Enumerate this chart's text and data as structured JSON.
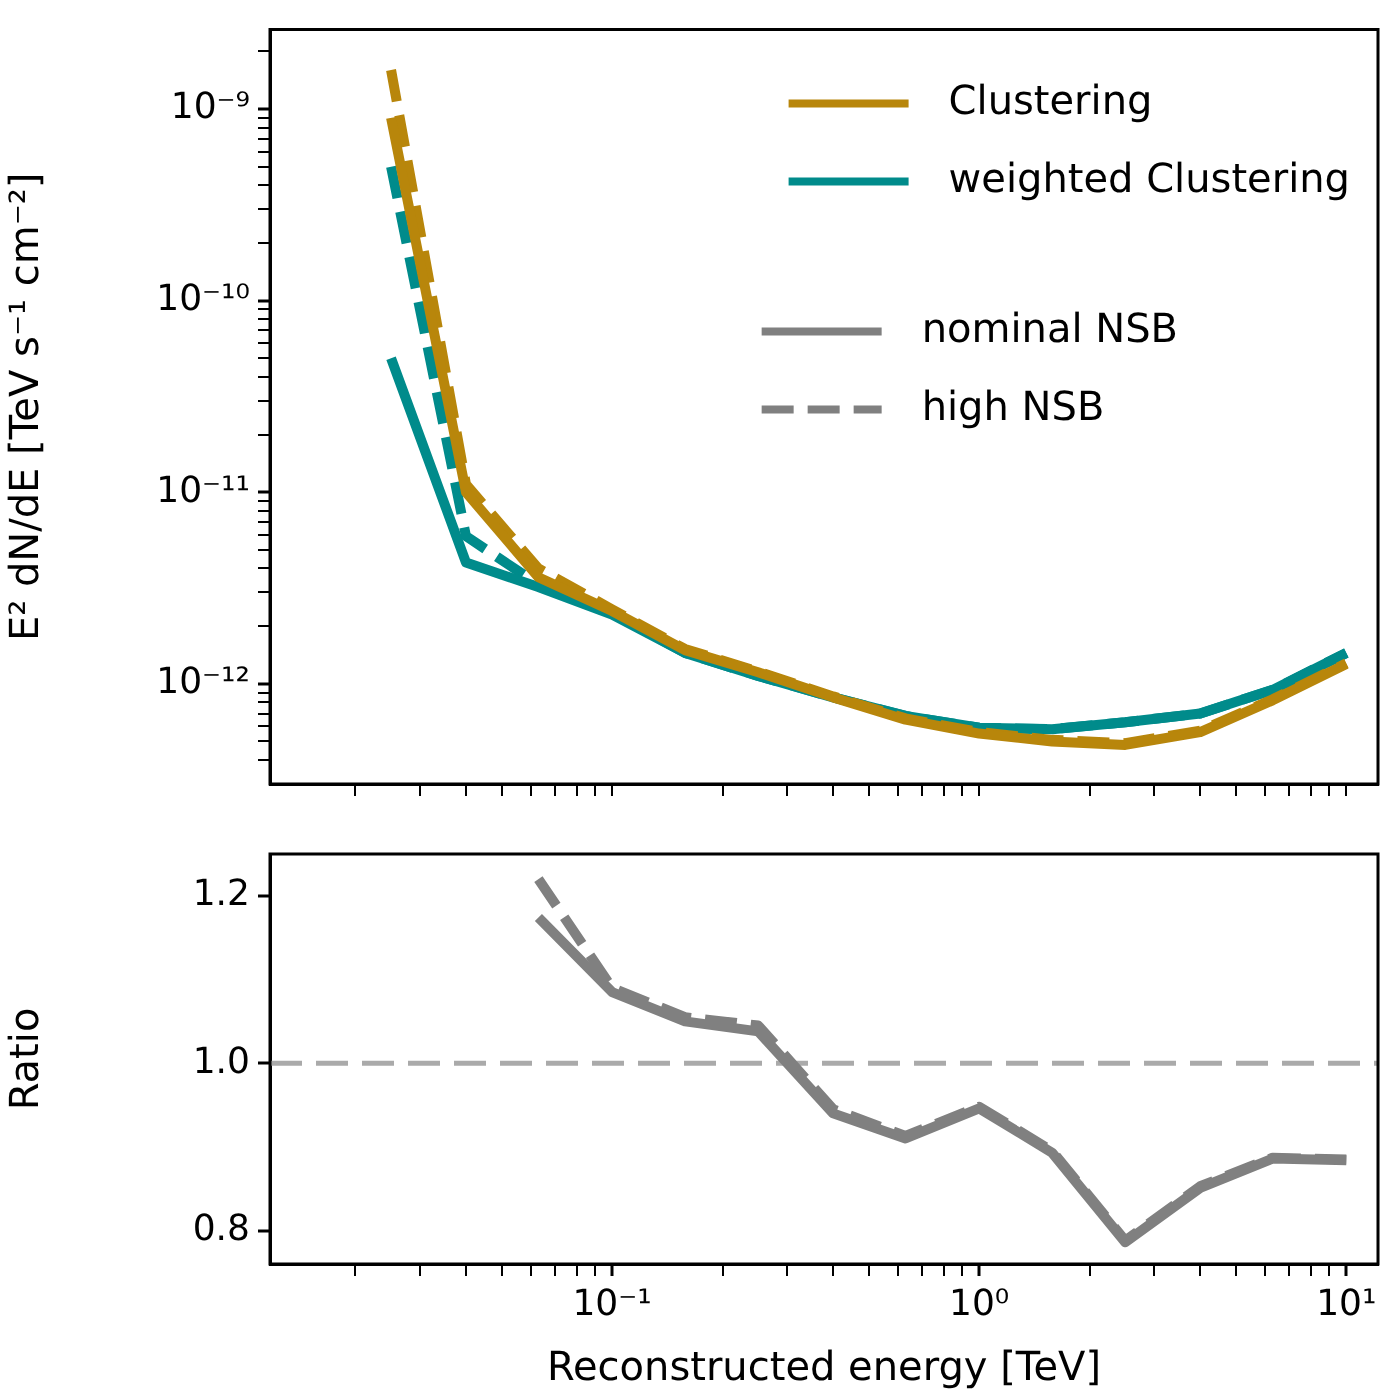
{
  "chart_data": [
    {
      "type": "line",
      "ylabel": "E² dN/dE [TeV s⁻¹ cm⁻²]",
      "log": "xy",
      "legend": "top right",
      "tick_labels": "y",
      "grid": false,
      "x": [
        0.025,
        0.04,
        0.063,
        0.1,
        0.158,
        0.25,
        0.4,
        0.63,
        1.0,
        1.58,
        2.5,
        4.0,
        6.3,
        10
      ],
      "xlim": [
        0.0117,
        12.2
      ],
      "ylim": [
        3.2e-13,
        2.6e-09
      ],
      "xticks": [
        {
          "value": 0.02,
          "label": null
        },
        {
          "value": 0.03,
          "label": null
        },
        {
          "value": 0.04,
          "label": null
        },
        {
          "value": 0.05,
          "label": null
        },
        {
          "value": 0.06,
          "label": null
        },
        {
          "value": 0.07,
          "label": null
        },
        {
          "value": 0.08,
          "label": null
        },
        {
          "value": 0.09,
          "label": null
        },
        {
          "value": 0.1,
          "label": null
        },
        {
          "value": 0.2,
          "label": null
        },
        {
          "value": 0.3,
          "label": null
        },
        {
          "value": 0.4,
          "label": null
        },
        {
          "value": 0.5,
          "label": null
        },
        {
          "value": 0.6,
          "label": null
        },
        {
          "value": 0.7,
          "label": null
        },
        {
          "value": 0.8,
          "label": null
        },
        {
          "value": 0.9,
          "label": null
        },
        {
          "value": 1,
          "label": null
        },
        {
          "value": 2,
          "label": null
        },
        {
          "value": 3,
          "label": null
        },
        {
          "value": 4,
          "label": null
        },
        {
          "value": 5,
          "label": null
        },
        {
          "value": 6,
          "label": null
        },
        {
          "value": 7,
          "label": null
        },
        {
          "value": 8,
          "label": null
        },
        {
          "value": 9,
          "label": null
        },
        {
          "value": 10,
          "label": null
        }
      ],
      "yticks": [
        {
          "value": 4e-13,
          "label": null
        },
        {
          "value": 5e-13,
          "label": null
        },
        {
          "value": 6e-13,
          "label": null
        },
        {
          "value": 7e-13,
          "label": null
        },
        {
          "value": 8e-13,
          "label": null
        },
        {
          "value": 9e-13,
          "label": null
        },
        {
          "value": 1e-12,
          "label": "10⁻¹²"
        },
        {
          "value": 2e-12,
          "label": null
        },
        {
          "value": 3e-12,
          "label": null
        },
        {
          "value": 4e-12,
          "label": null
        },
        {
          "value": 5e-12,
          "label": null
        },
        {
          "value": 6e-12,
          "label": null
        },
        {
          "value": 7e-12,
          "label": null
        },
        {
          "value": 8e-12,
          "label": null
        },
        {
          "value": 9e-12,
          "label": null
        },
        {
          "value": 1e-11,
          "label": "10⁻¹¹"
        },
        {
          "value": 2e-11,
          "label": null
        },
        {
          "value": 3e-11,
          "label": null
        },
        {
          "value": 4e-11,
          "label": null
        },
        {
          "value": 5e-11,
          "label": null
        },
        {
          "value": 6e-11,
          "label": null
        },
        {
          "value": 7e-11,
          "label": null
        },
        {
          "value": 8e-11,
          "label": null
        },
        {
          "value": 9e-11,
          "label": null
        },
        {
          "value": 1e-10,
          "label": "10⁻¹⁰"
        },
        {
          "value": 2e-10,
          "label": null
        },
        {
          "value": 3e-10,
          "label": null
        },
        {
          "value": 4e-10,
          "label": null
        },
        {
          "value": 5e-10,
          "label": null
        },
        {
          "value": 6e-10,
          "label": null
        },
        {
          "value": 7e-10,
          "label": null
        },
        {
          "value": 8e-10,
          "label": null
        },
        {
          "value": 9e-10,
          "label": null
        },
        {
          "value": 1e-09,
          "label": "10⁻⁹"
        },
        {
          "value": 2e-09,
          "label": null
        }
      ],
      "series": [
        {
          "name": "Clustering",
          "color": "#b8860b",
          "line_style": "solid",
          "values": [
            9e-10,
            1e-11,
            3.6e-12,
            2.4e-12,
            1.5e-12,
            1.15e-12,
            8.5e-13,
            6.5e-13,
            5.5e-13,
            5e-13,
            4.8e-13,
            5.6e-13,
            8.2e-13,
            1.27e-12
          ]
        },
        {
          "color": "#b8860b",
          "line_style": "dashed",
          "values": [
            1.6e-09,
            1.1e-11,
            4e-12,
            2.45e-12,
            1.52e-12,
            1.16e-12,
            8.6e-13,
            6.6e-13,
            5.6e-13,
            5.1e-13,
            4.9e-13,
            5.7e-13,
            8.3e-13,
            1.28e-12
          ]
        },
        {
          "name": "weighted Clustering",
          "color": "#008b8b",
          "line_style": "solid",
          "values": [
            5e-11,
            4.3e-12,
            3.2e-12,
            2.3e-12,
            1.45e-12,
            1.1e-12,
            8.5e-13,
            6.8e-13,
            5.9e-13,
            5.8e-13,
            6.3e-13,
            7e-13,
            9.3e-13,
            1.45e-12
          ]
        },
        {
          "color": "#008b8b",
          "line_style": "dashed",
          "values": [
            5e-10,
            5.9e-12,
            3.3e-12,
            2.35e-12,
            1.45e-12,
            1.1e-12,
            8.5e-13,
            6.8e-13,
            5.9e-13,
            5.8e-13,
            6.3e-13,
            7e-13,
            9.3e-13,
            1.45e-12
          ]
        }
      ]
    },
    {
      "type": "line",
      "xlabel": "Reconstructed energy [TeV]",
      "ylabel": "Ratio",
      "log": "x",
      "grid": false,
      "x": [
        0.063,
        0.1,
        0.158,
        0.25,
        0.4,
        0.63,
        1.0,
        1.58,
        2.5,
        4.0,
        6.3,
        10
      ],
      "xlim": [
        0.0117,
        12.2
      ],
      "ylim": [
        0.76,
        1.25
      ],
      "xticks": [
        {
          "value": 0.02,
          "label": null
        },
        {
          "value": 0.03,
          "label": null
        },
        {
          "value": 0.04,
          "label": null
        },
        {
          "value": 0.05,
          "label": null
        },
        {
          "value": 0.06,
          "label": null
        },
        {
          "value": 0.07,
          "label": null
        },
        {
          "value": 0.08,
          "label": null
        },
        {
          "value": 0.09,
          "label": null
        },
        {
          "value": 0.1,
          "label": "10⁻¹"
        },
        {
          "value": 0.2,
          "label": null
        },
        {
          "value": 0.3,
          "label": null
        },
        {
          "value": 0.4,
          "label": null
        },
        {
          "value": 0.5,
          "label": null
        },
        {
          "value": 0.6,
          "label": null
        },
        {
          "value": 0.7,
          "label": null
        },
        {
          "value": 0.8,
          "label": null
        },
        {
          "value": 0.9,
          "label": null
        },
        {
          "value": 1,
          "label": "10⁰"
        },
        {
          "value": 2,
          "label": null
        },
        {
          "value": 3,
          "label": null
        },
        {
          "value": 4,
          "label": null
        },
        {
          "value": 5,
          "label": null
        },
        {
          "value": 6,
          "label": null
        },
        {
          "value": 7,
          "label": null
        },
        {
          "value": 8,
          "label": null
        },
        {
          "value": 9,
          "label": null
        },
        {
          "value": 10,
          "label": "10¹"
        }
      ],
      "yticks": [
        0.8,
        {
          "value": 1,
          "label": "1.0"
        },
        1.2
      ],
      "ref_lines": [
        {
          "axis": "y",
          "value": 1,
          "color": "#aaaaaa",
          "line_style": "dashed"
        }
      ],
      "series": [
        {
          "name": "nominal NSB",
          "color": "#808080",
          "line_style": "solid",
          "values": [
            1.174,
            1.085,
            1.05,
            1.038,
            0.94,
            0.91,
            0.946,
            0.893,
            0.786,
            0.851,
            0.886,
            0.884
          ]
        },
        {
          "name": "high NSB",
          "color": "#808080",
          "line_style": "dashed",
          "values": [
            1.22,
            1.09,
            1.055,
            1.045,
            0.945,
            0.913,
            0.948,
            0.895,
            0.788,
            0.853,
            0.887,
            0.885
          ]
        }
      ]
    }
  ]
}
